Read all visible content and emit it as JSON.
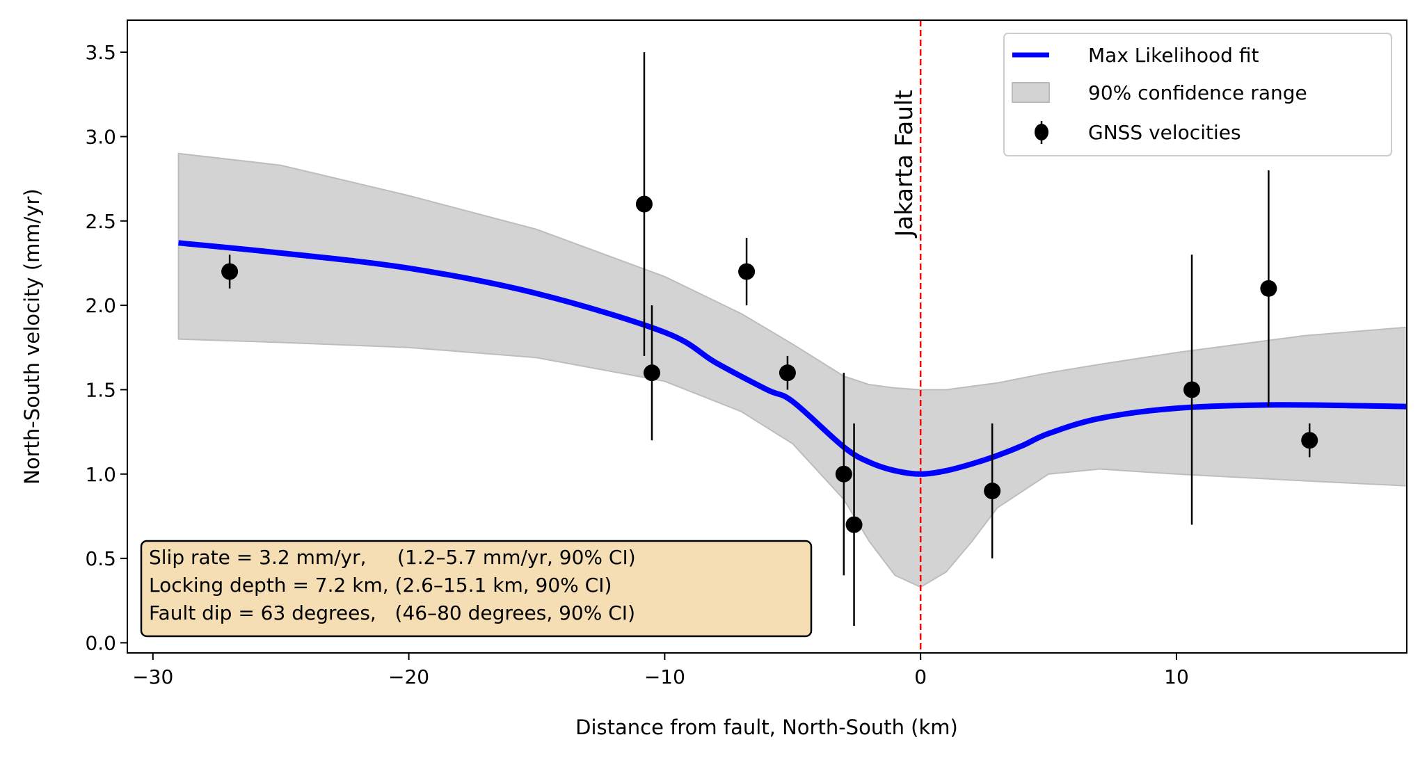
{
  "chart_data": {
    "type": "scatter",
    "title": "",
    "xlabel": "Distance from fault, North-South (km)",
    "ylabel": "North-South velocity (mm/yr)",
    "xlim": [
      -31,
      19
    ],
    "ylim": [
      -0.06,
      3.69
    ],
    "xticks": [
      -30,
      -20,
      -10,
      0,
      10
    ],
    "xtick_labels": [
      "−30",
      "−20",
      "−10",
      "0",
      "10"
    ],
    "yticks": [
      0.0,
      0.5,
      1.0,
      1.5,
      2.0,
      2.5,
      3.0,
      3.5
    ],
    "ytick_labels": [
      "0.0",
      "0.5",
      "1.0",
      "1.5",
      "2.0",
      "2.5",
      "3.0",
      "3.5"
    ],
    "grid": false,
    "legend_position": "top-right",
    "colors": {
      "fit": "#0000ff",
      "band": "#d3d3d3",
      "points": "#000000",
      "fault_line": "#ff0000",
      "annotation_box": "#f5deb3"
    },
    "series": [
      {
        "name": "Max Likelihood fit",
        "type": "line",
        "x": [
          -29,
          -25,
          -20,
          -15,
          -10,
          -8,
          -6,
          -5,
          -3,
          -2,
          -1,
          0,
          1,
          2,
          3,
          4,
          5,
          7,
          10,
          14,
          19
        ],
        "y": [
          2.37,
          2.31,
          2.22,
          2.07,
          1.84,
          1.66,
          1.5,
          1.43,
          1.16,
          1.07,
          1.02,
          1.0,
          1.02,
          1.06,
          1.11,
          1.17,
          1.24,
          1.33,
          1.39,
          1.41,
          1.4
        ]
      },
      {
        "name": "90% confidence range",
        "type": "band",
        "x": [
          -29,
          -25,
          -20,
          -15,
          -10,
          -7,
          -5,
          -3,
          -2,
          -1,
          0,
          1,
          2,
          3,
          5,
          7,
          10,
          15,
          19
        ],
        "upper": [
          2.9,
          2.83,
          2.65,
          2.45,
          2.17,
          1.95,
          1.77,
          1.58,
          1.53,
          1.51,
          1.5,
          1.5,
          1.52,
          1.54,
          1.6,
          1.65,
          1.72,
          1.82,
          1.87
        ],
        "lower": [
          1.8,
          1.78,
          1.75,
          1.69,
          1.55,
          1.37,
          1.18,
          0.85,
          0.6,
          0.4,
          0.33,
          0.42,
          0.6,
          0.8,
          1.0,
          1.03,
          1.0,
          0.96,
          0.93
        ]
      },
      {
        "name": "GNSS velocities",
        "type": "errorbar",
        "x": [
          -27.0,
          -10.8,
          -10.5,
          -6.8,
          -5.2,
          -3.0,
          -2.6,
          2.8,
          10.6,
          13.6,
          15.2
        ],
        "y": [
          2.2,
          2.6,
          1.6,
          2.2,
          1.6,
          1.0,
          0.7,
          0.9,
          1.5,
          2.1,
          1.2
        ],
        "yerr": [
          0.1,
          0.9,
          0.4,
          0.2,
          0.1,
          0.6,
          0.6,
          0.4,
          0.8,
          0.7,
          0.1
        ]
      }
    ],
    "fault": {
      "x": 0,
      "label": "Jakarta Fault"
    },
    "annotation": [
      "Slip rate = 3.2 mm/yr,     (1.2–5.7 mm/yr, 90% CI)",
      "Locking depth = 7.2 km, (2.6–15.1 km, 90% CI)",
      "Fault dip = 63 degrees,   (46–80 degrees, 90% CI)"
    ]
  }
}
